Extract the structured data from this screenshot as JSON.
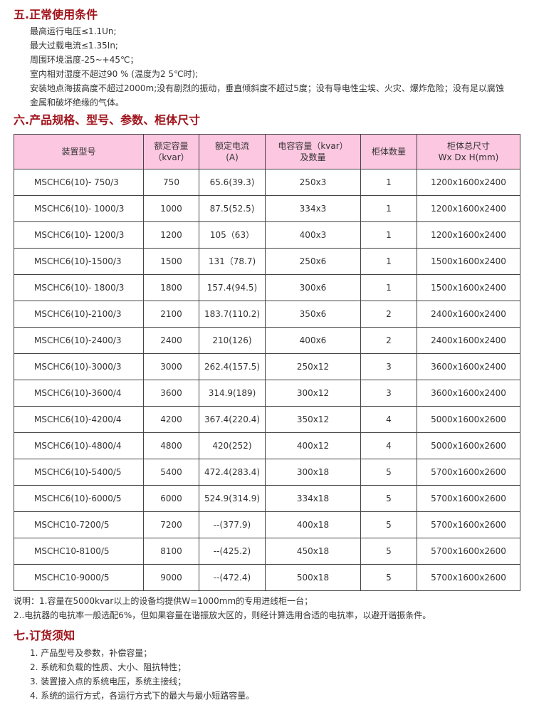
{
  "section5": {
    "title": "五.正常使用条件",
    "items": [
      "最高运行电压≤1.1Un;",
      "最大过载电流≤1.35In;",
      "周围环境温度-25~+45℃；",
      "室内相对湿度不超过90 % (温度为2 5℃时);",
      "安装地点海拔高度不超过2000m;没有剧烈的振动，垂直倾斜度不超过5度；没有导电性尘埃、火灾、爆炸危险；没有足以腐蚀",
      "金属和破坏绝缘的气体。"
    ]
  },
  "section6": {
    "title": "六.产品规格、型号、参数、柜体尺寸",
    "headers": [
      [
        "装置型号"
      ],
      [
        "额定容量",
        "（kvar）"
      ],
      [
        "额定电流",
        "(A)"
      ],
      [
        "电容容量（kvar）",
        "及数量"
      ],
      [
        "柜体数量"
      ],
      [
        "柜体总尺寸",
        "Wx Dx H(mm)"
      ]
    ],
    "rows": [
      [
        "MSCHC6(10)- 750/3",
        "750",
        "65.6(39.3)",
        "250x3",
        "1",
        "1200x1600x2400"
      ],
      [
        "MSCHC6(10)- 1000/3",
        "1000",
        "87.5(52.5)",
        "334x3",
        "1",
        "1200x1600x2400"
      ],
      [
        "MSCHC6(10)- 1200/3",
        "1200",
        "105（63）",
        "400x3",
        "1",
        "1200x1600x2400"
      ],
      [
        "MSCHC6(10)-1500/3",
        "1500",
        "131（78.7)",
        "250x6",
        "1",
        "1500x1600x2400"
      ],
      [
        "MSCHC6(10)- 1800/3",
        "1800",
        "157.4(94.5)",
        "300x6",
        "1",
        "1500x1600x2400"
      ],
      [
        "MSCHC6(10)-2100/3",
        "2100",
        "183.7(110.2)",
        "350x6",
        "2",
        "2400x1600x2400"
      ],
      [
        "MSCHC6(10)-2400/3",
        "2400",
        "210(126)",
        "400x6",
        "2",
        "2400x1600x2400"
      ],
      [
        "MSCHC6(10)-3000/3",
        "3000",
        "262.4(157.5)",
        "250x12",
        "3",
        "3600x1600x2400"
      ],
      [
        "MSCHC6(10)-3600/4",
        "3600",
        "314.9(189)",
        "300x12",
        "3",
        "3600x1600x2400"
      ],
      [
        "MSCHC6(10)-4200/4",
        "4200",
        "367.4(220.4)",
        "350x12",
        "4",
        "5000x1600x2600"
      ],
      [
        "MSCHC6(10)-4800/4",
        "4800",
        "420(252)",
        "400x12",
        "4",
        "5000x1600x2600"
      ],
      [
        "MSCHC6(10)-5400/5",
        "5400",
        "472.4(283.4)",
        "300x18",
        "5",
        "5700x1600x2600"
      ],
      [
        "MSCHC6(10)-6000/5",
        "6000",
        "524.9(314.9)",
        "334x18",
        "5",
        "5700x1600x2600"
      ],
      [
        "MSCHC10-7200/5",
        "7200",
        "--(377.9)",
        "400x18",
        "5",
        "5700x1600x2600"
      ],
      [
        "MSCHC10-8100/5",
        "8100",
        "--(425.2)",
        "450x18",
        "5",
        "5700x1600x2600"
      ],
      [
        "MSCHC10-9000/5",
        "9000",
        "--(472.4)",
        "500x18",
        "5",
        "5700x1600x2600"
      ]
    ],
    "notes": [
      "说明：1.容量在5000kvar以上的设备均提供W=1000mm的专用进线柜一台；",
      "2..电抗器的电抗率一般选配6%，但如果容量在谐振放大区的，则经计算选用合适的电抗率，以避开谐振条件。"
    ]
  },
  "section7": {
    "title": "七.订货须知",
    "items": [
      "1.  产品型号及参数，补偿容量；",
      "2.  系统和负载的性质、大小、阻抗特性；",
      "3.  装置接入点的系统电压，系统主接线；",
      "4.  系统的运行方式，各运行方式下的最大与最小短路容量。"
    ]
  }
}
